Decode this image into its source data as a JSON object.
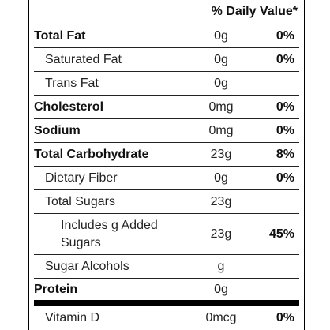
{
  "header": {
    "daily_value_label": "% Daily Value*"
  },
  "rows": [
    {
      "label": "Total Fat",
      "amount": "0g",
      "dv": "0%",
      "bold": true,
      "indent": 0
    },
    {
      "label": "Saturated Fat",
      "amount": "0g",
      "dv": "0%",
      "bold": false,
      "indent": 1
    },
    {
      "label": "Trans Fat",
      "amount": "0g",
      "dv": "",
      "bold": false,
      "indent": 1
    },
    {
      "label": "Cholesterol",
      "amount": "0mg",
      "dv": "0%",
      "bold": true,
      "indent": 0
    },
    {
      "label": "Sodium",
      "amount": "0mg",
      "dv": "0%",
      "bold": true,
      "indent": 0
    },
    {
      "label": "Total Carbohydrate",
      "amount": "23g",
      "dv": "8%",
      "bold": true,
      "indent": 0
    },
    {
      "label": "Dietary Fiber",
      "amount": "0g",
      "dv": "0%",
      "bold": false,
      "indent": 1
    },
    {
      "label": "Total Sugars",
      "amount": "23g",
      "dv": "",
      "bold": false,
      "indent": 1
    },
    {
      "label": "Includes g Added Sugars",
      "amount": "23g",
      "dv": "45%",
      "bold": false,
      "indent": 2
    },
    {
      "label": "Sugar Alcohols",
      "amount": "g",
      "dv": "",
      "bold": false,
      "indent": 1
    },
    {
      "label": "Protein",
      "amount": "0g",
      "dv": "",
      "bold": true,
      "indent": 0
    },
    {
      "label": "Vitamin D",
      "amount": "0mcg",
      "dv": "0%",
      "bold": false,
      "indent": 1
    }
  ]
}
